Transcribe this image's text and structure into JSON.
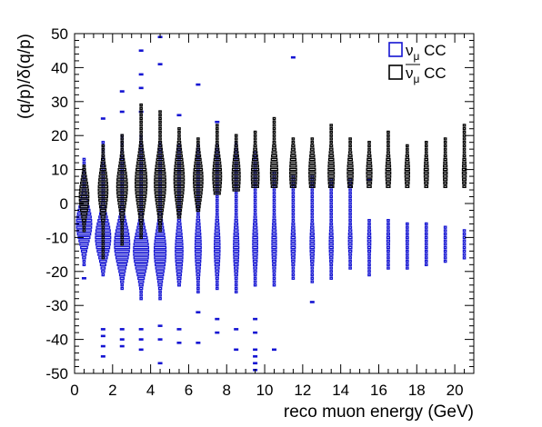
{
  "chart_data": {
    "type": "box",
    "xlabel": "reco muon energy (GeV)",
    "ylabel": "(q/p)/δ(q/p)",
    "xlim": [
      0,
      21
    ],
    "ylim": [
      -50,
      50
    ],
    "x_ticks": [
      "0",
      "2",
      "4",
      "6",
      "8",
      "10",
      "12",
      "14",
      "16",
      "18",
      "20"
    ],
    "y_ticks": [
      "-50",
      "-40",
      "-30",
      "-20",
      "-10",
      "0",
      "10",
      "20",
      "30",
      "40",
      "50"
    ],
    "grid": false,
    "legend_position": "top-right",
    "bin_width_y": 1,
    "series": [
      {
        "name_main": "ν",
        "name_sub": "μ",
        "name_suffix": " CC",
        "overline": false,
        "color": "#1414d2",
        "columns": [
          {
            "x": 0.5,
            "ymin": -18,
            "ymax": 13,
            "peak": -6,
            "maxw": 0.8,
            "sigma": 5.5,
            "outliers": [
              -22
            ]
          },
          {
            "x": 1.5,
            "ymin": -21,
            "ymax": 18,
            "peak": -10,
            "maxw": 0.8,
            "sigma": 5.5,
            "outliers": [
              -37,
              -39,
              -42,
              -45,
              25
            ]
          },
          {
            "x": 2.5,
            "ymin": -25,
            "ymax": 20,
            "peak": -12,
            "maxw": 0.8,
            "sigma": 6,
            "outliers": [
              -37,
              -40,
              -42,
              27,
              33
            ]
          },
          {
            "x": 3.5,
            "ymin": -28,
            "ymax": 20,
            "peak": -14,
            "maxw": 0.8,
            "sigma": 6,
            "outliers": [
              -37,
              -40,
              -43,
              27,
              34,
              38,
              45
            ]
          },
          {
            "x": 4.5,
            "ymin": -28,
            "ymax": 18,
            "peak": -14,
            "maxw": 0.62,
            "sigma": 6.5,
            "outliers": [
              -36,
              -40,
              -47,
              41,
              49
            ]
          },
          {
            "x": 5.5,
            "ymin": -24,
            "ymax": 17,
            "peak": -14,
            "maxw": 0.4,
            "sigma": 6.5,
            "outliers": [
              -37,
              -41,
              26
            ]
          },
          {
            "x": 6.5,
            "ymin": -26,
            "ymax": 17,
            "peak": -13,
            "maxw": 0.32,
            "sigma": 7,
            "outliers": [
              -32,
              -41,
              35
            ]
          },
          {
            "x": 7.5,
            "ymin": -25,
            "ymax": 17,
            "peak": -13,
            "maxw": 0.3,
            "sigma": 7,
            "outliers": [
              -34,
              -38,
              24
            ]
          },
          {
            "x": 8.5,
            "ymin": -26,
            "ymax": 18,
            "peak": -13,
            "maxw": 0.28,
            "sigma": 7,
            "outliers": [
              -37,
              -43
            ]
          },
          {
            "x": 9.5,
            "ymin": -24,
            "ymax": 15,
            "peak": -12,
            "maxw": 0.26,
            "sigma": 7,
            "outliers": [
              -34,
              -38,
              -43,
              -45,
              -47,
              -49
            ]
          },
          {
            "x": 10.5,
            "ymin": -24,
            "ymax": 9,
            "peak": -12,
            "maxw": 0.24,
            "sigma": 7,
            "outliers": [
              -43
            ]
          },
          {
            "x": 11.5,
            "ymin": -22,
            "ymax": 8,
            "peak": -12,
            "maxw": 0.22,
            "sigma": 6,
            "outliers": [
              43
            ]
          },
          {
            "x": 12.5,
            "ymin": -23,
            "ymax": 8,
            "peak": -12,
            "maxw": 0.22,
            "sigma": 6,
            "outliers": [
              -29
            ]
          },
          {
            "x": 13.5,
            "ymin": -22,
            "ymax": 7,
            "peak": -12,
            "maxw": 0.2,
            "sigma": 6,
            "outliers": []
          },
          {
            "x": 14.5,
            "ymin": -19,
            "ymax": 7,
            "peak": -11,
            "maxw": 0.18,
            "sigma": 5,
            "outliers": []
          },
          {
            "x": 15.5,
            "ymin": -21,
            "ymax": -5,
            "peak": -11,
            "maxw": 0.16,
            "sigma": 5,
            "outliers": [
              7
            ]
          },
          {
            "x": 16.5,
            "ymin": -19,
            "ymax": -5,
            "peak": -11,
            "maxw": 0.14,
            "sigma": 5,
            "outliers": []
          },
          {
            "x": 17.5,
            "ymin": -19,
            "ymax": -6,
            "peak": -11,
            "maxw": 0.12,
            "sigma": 4,
            "outliers": []
          },
          {
            "x": 18.5,
            "ymin": -18,
            "ymax": -6,
            "peak": -11,
            "maxw": 0.1,
            "sigma": 4,
            "outliers": []
          },
          {
            "x": 19.5,
            "ymin": -17,
            "ymax": -7,
            "peak": -11,
            "maxw": 0.1,
            "sigma": 4,
            "outliers": []
          },
          {
            "x": 20.5,
            "ymin": -16,
            "ymax": -8,
            "peak": -11,
            "maxw": 0.1,
            "sigma": 4,
            "outliers": []
          }
        ]
      },
      {
        "name_main": "ν",
        "name_sub": "μ",
        "name_suffix": " CC",
        "overline": true,
        "color": "#000000",
        "columns": [
          {
            "x": 0.5,
            "ymin": -8,
            "ymax": 11,
            "peak": 2,
            "maxw": 0.5,
            "sigma": 5,
            "outliers": []
          },
          {
            "x": 1.5,
            "ymin": -16,
            "ymax": 17,
            "peak": 4,
            "maxw": 0.5,
            "sigma": 6,
            "outliers": []
          },
          {
            "x": 2.5,
            "ymin": -12,
            "ymax": 20,
            "peak": 5,
            "maxw": 0.56,
            "sigma": 6,
            "outliers": []
          },
          {
            "x": 3.5,
            "ymin": -10,
            "ymax": 29,
            "peak": 6,
            "maxw": 0.62,
            "sigma": 7,
            "outliers": []
          },
          {
            "x": 4.5,
            "ymin": -8,
            "ymax": 27,
            "peak": 6,
            "maxw": 0.6,
            "sigma": 7,
            "outliers": []
          },
          {
            "x": 5.5,
            "ymin": -4,
            "ymax": 22,
            "peak": 7,
            "maxw": 0.54,
            "sigma": 7,
            "outliers": []
          },
          {
            "x": 6.5,
            "ymin": -2,
            "ymax": 19,
            "peak": 7,
            "maxw": 0.5,
            "sigma": 6,
            "outliers": []
          },
          {
            "x": 7.5,
            "ymin": 3,
            "ymax": 23,
            "peak": 8,
            "maxw": 0.46,
            "sigma": 6,
            "outliers": []
          },
          {
            "x": 8.5,
            "ymin": 4,
            "ymax": 20,
            "peak": 8,
            "maxw": 0.42,
            "sigma": 6,
            "outliers": []
          },
          {
            "x": 9.5,
            "ymin": 5,
            "ymax": 21,
            "peak": 8,
            "maxw": 0.4,
            "sigma": 6,
            "outliers": []
          },
          {
            "x": 10.5,
            "ymin": 5,
            "ymax": 25,
            "peak": 9,
            "maxw": 0.38,
            "sigma": 6,
            "outliers": []
          },
          {
            "x": 11.5,
            "ymin": 5,
            "ymax": 19,
            "peak": 9,
            "maxw": 0.36,
            "sigma": 6,
            "outliers": []
          },
          {
            "x": 12.5,
            "ymin": 5,
            "ymax": 19,
            "peak": 9,
            "maxw": 0.34,
            "sigma": 6,
            "outliers": []
          },
          {
            "x": 13.5,
            "ymin": 5,
            "ymax": 23,
            "peak": 9,
            "maxw": 0.32,
            "sigma": 6,
            "outliers": []
          },
          {
            "x": 14.5,
            "ymin": 5,
            "ymax": 19,
            "peak": 9,
            "maxw": 0.3,
            "sigma": 5,
            "outliers": []
          },
          {
            "x": 15.5,
            "ymin": 5,
            "ymax": 18,
            "peak": 9,
            "maxw": 0.28,
            "sigma": 5,
            "outliers": []
          },
          {
            "x": 16.5,
            "ymin": 5,
            "ymax": 21,
            "peak": 9,
            "maxw": 0.26,
            "sigma": 5,
            "outliers": []
          },
          {
            "x": 17.5,
            "ymin": 5,
            "ymax": 17,
            "peak": 9,
            "maxw": 0.24,
            "sigma": 5,
            "outliers": []
          },
          {
            "x": 18.5,
            "ymin": 5,
            "ymax": 18,
            "peak": 9,
            "maxw": 0.22,
            "sigma": 5,
            "outliers": []
          },
          {
            "x": 19.5,
            "ymin": 5,
            "ymax": 19,
            "peak": 9,
            "maxw": 0.2,
            "sigma": 5,
            "outliers": []
          },
          {
            "x": 20.5,
            "ymin": 5,
            "ymax": 23,
            "peak": 9,
            "maxw": 0.2,
            "sigma": 5,
            "outliers": []
          }
        ]
      }
    ]
  }
}
